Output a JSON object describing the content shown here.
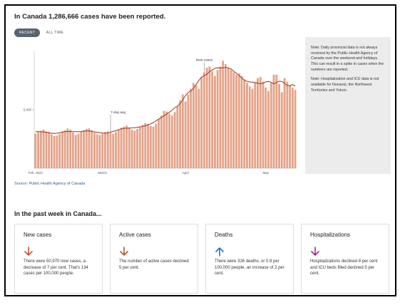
{
  "header": {
    "title": "In Canada 1,286,666 cases have been reported."
  },
  "toggle": {
    "recent": "RECENT",
    "all_time": "ALL TIME"
  },
  "chart_data": {
    "type": "bar",
    "ylim": [
      0,
      10000
    ],
    "yticks": [
      {
        "value": 5000,
        "label": "5,000"
      }
    ],
    "xticks": [
      {
        "index": 0,
        "label": "Feb. 2021"
      },
      {
        "index": 25,
        "label": "March"
      },
      {
        "index": 56,
        "label": "April"
      },
      {
        "index": 86,
        "label": "May"
      }
    ],
    "annotations": [
      {
        "label": "7-day avg.",
        "index": 28
      },
      {
        "label": "New cases",
        "index": 63
      }
    ],
    "values": [
      2950,
      3050,
      3200,
      3300,
      3150,
      3100,
      2900,
      2750,
      2800,
      2950,
      3150,
      3250,
      3400,
      3300,
      3050,
      2850,
      2950,
      3100,
      3250,
      3350,
      3400,
      3250,
      3050,
      2900,
      2850,
      2950,
      3100,
      3150,
      3000,
      2950,
      3100,
      3300,
      3450,
      3550,
      3650,
      3500,
      3300,
      3200,
      3350,
      3550,
      3700,
      3850,
      3800,
      3600,
      3550,
      3800,
      4200,
      4500,
      4900,
      4850,
      4650,
      4500,
      4800,
      5300,
      5800,
      6300,
      5700,
      6300,
      6800,
      7300,
      7100,
      6800,
      7800,
      8200,
      8600,
      8700,
      8300,
      7900,
      8400,
      8700,
      9200,
      8900,
      8600,
      8400,
      8200,
      8000,
      8100,
      7900,
      7600,
      7300,
      7000,
      6800,
      7300,
      7700,
      7800,
      7400,
      6900,
      6600,
      7300,
      8000,
      8000,
      7200,
      6500,
      7700,
      7400,
      7100,
      6900,
      6700
    ]
  },
  "source": "Source: Public Health Agency of Canada",
  "note": {
    "para1": "Note: Daily provincial data is not always received by the Public Health Agency of Canada over the weekend and holidays. This can result in a spike in cases when the numbers are reported.",
    "para2": "Note: Hospitalization and ICU data is not available for Nunavut, the Northwest Territories and Yukon."
  },
  "section_title": "In the past week in Canada...",
  "cards": [
    {
      "title": "New cases",
      "text": "There were 50,970 new cases, a decrease of 7 per cent. That's 134 cases per 100,000 people.",
      "arrow": "down",
      "color": "#c0522e"
    },
    {
      "title": "Active cases",
      "text": "The number of active cases declined 5 per cent.",
      "arrow": "down",
      "color": "#c0522e"
    },
    {
      "title": "Deaths",
      "text": "There were 326 deaths, or 0.9 per 100,000 people, an increase of 2 per cent.",
      "arrow": "up",
      "color": "#2a6fc4"
    },
    {
      "title": "Hospitalizations",
      "text": "Hospitalizations declined 8 per cent and ICU beds filled declined 5 per cent.",
      "arrow": "down",
      "color": "#9c2a8c"
    }
  ]
}
